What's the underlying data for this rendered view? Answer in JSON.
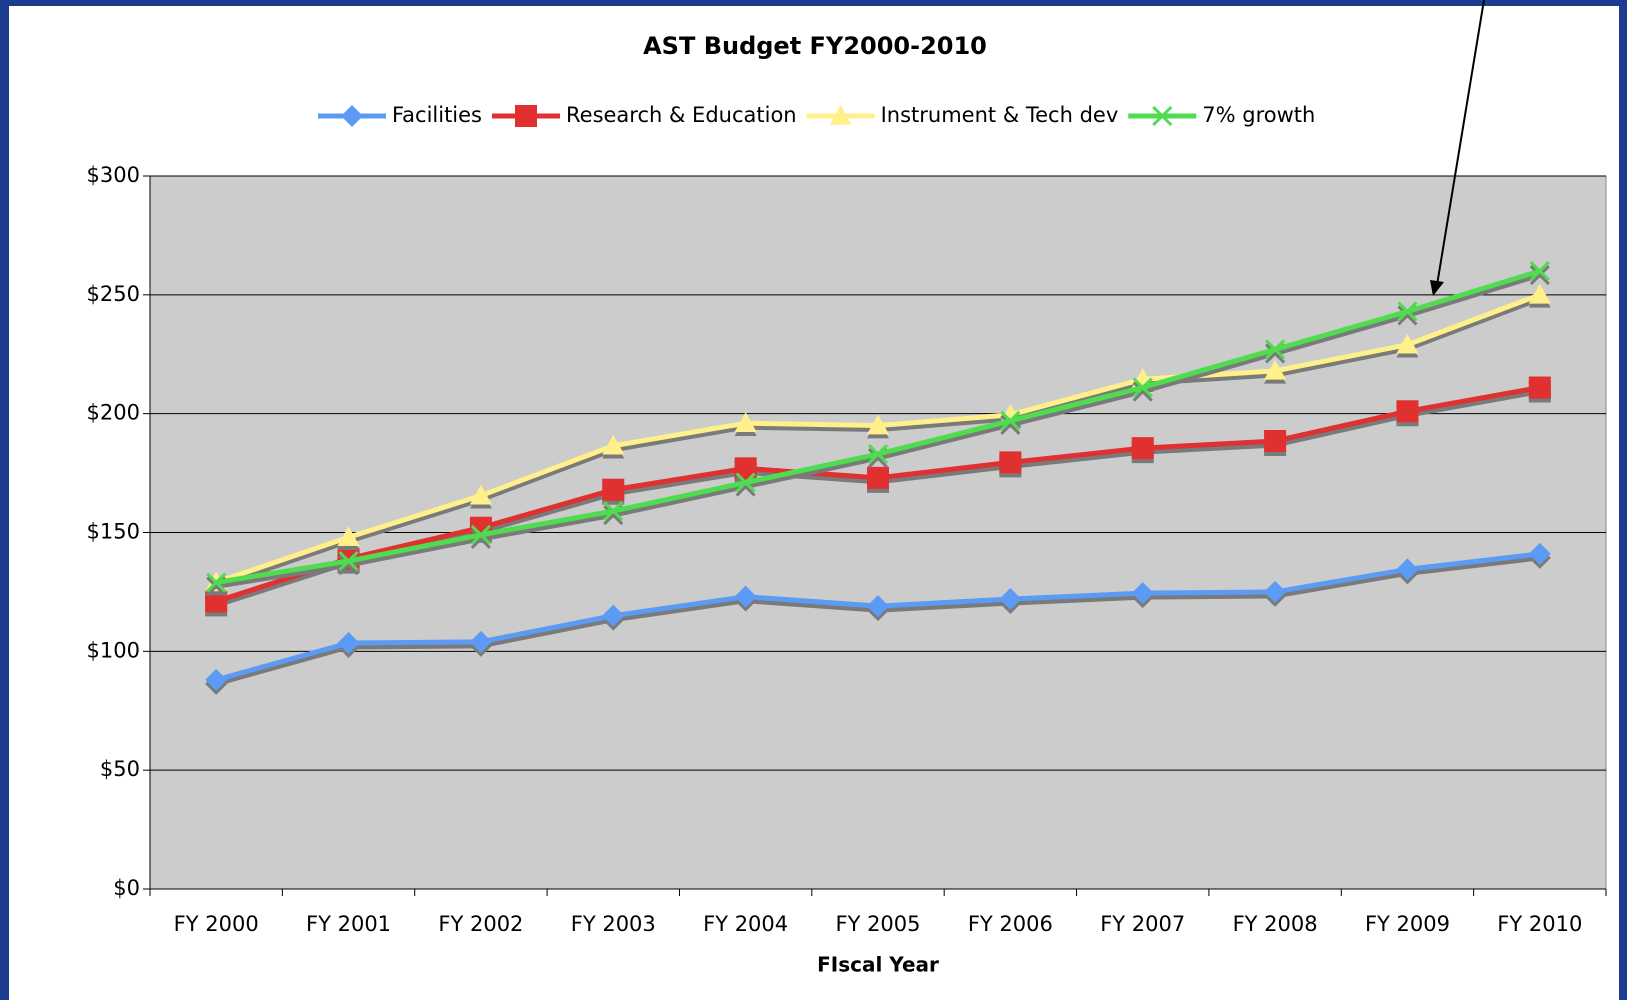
{
  "chart_data": {
    "type": "line",
    "title": "AST Budget FY2000-2010",
    "x_label": "FIscal Year",
    "categories": [
      "FY 2000",
      "FY 2001",
      "FY 2002",
      "FY 2003",
      "FY 2004",
      "FY 2005",
      "FY 2006",
      "FY 2007",
      "FY 2008",
      "FY 2009",
      "FY 2010"
    ],
    "series": [
      {
        "name": "Facilities",
        "color": "#5b9bf5",
        "marker": "diamond",
        "values": [
          88,
          103.5,
          104,
          115,
          123,
          119,
          122,
          124.5,
          125,
          134.5,
          141
        ]
      },
      {
        "name": "Research & Education",
        "color": "#e03030",
        "marker": "square",
        "values": [
          121,
          139,
          152,
          168,
          177,
          173,
          179.5,
          185.5,
          188.5,
          201,
          211
        ]
      },
      {
        "name": "Instrument & Tech dev",
        "color": "#fff08a",
        "marker": "triangle",
        "values": [
          129,
          148,
          165.5,
          186.5,
          196,
          195,
          199.5,
          214.5,
          218,
          229,
          250
        ]
      },
      {
        "name": "7% growth",
        "color": "#4fdc4f",
        "marker": "x",
        "values": [
          129,
          138,
          149,
          159,
          171,
          183,
          197,
          211,
          227,
          243,
          260
        ]
      }
    ],
    "ylim": [
      0,
      300
    ],
    "yticks": [
      {
        "value": 0,
        "label": "$0"
      },
      {
        "value": 50,
        "label": "$50"
      },
      {
        "value": 100,
        "label": "$100"
      },
      {
        "value": 150,
        "label": "$150"
      },
      {
        "value": 200,
        "label": "$200"
      },
      {
        "value": 250,
        "label": "$250"
      },
      {
        "value": 300,
        "label": "$300"
      }
    ],
    "grid": true,
    "legend": "top"
  }
}
